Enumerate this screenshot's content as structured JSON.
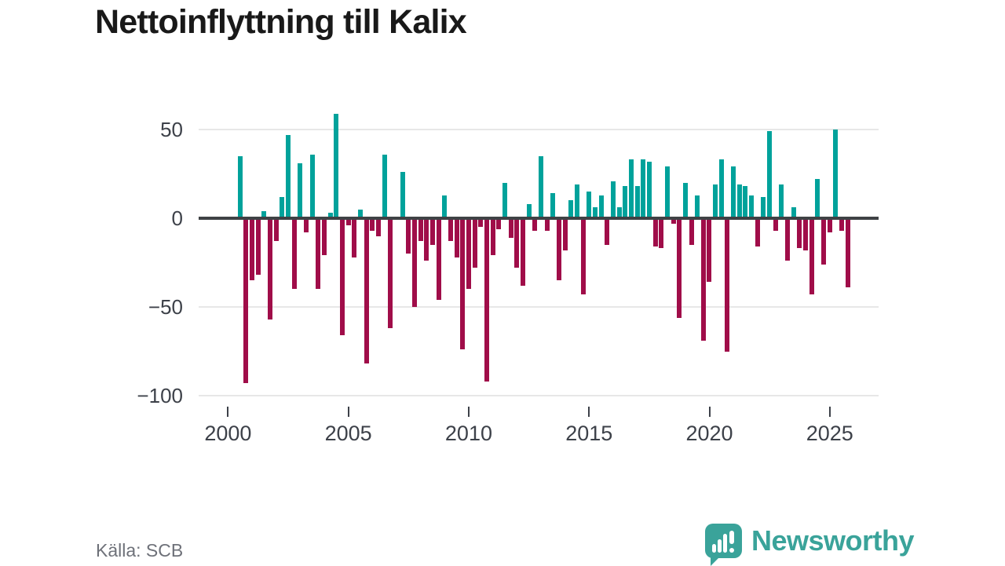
{
  "title": "Nettoinflyttning till Kalix",
  "footer": {
    "source": "Källa: SCB",
    "brand": "Newsworthy"
  },
  "colors": {
    "positive": "#00a29b",
    "negative": "#a00d49",
    "zero_line": "#3f4245",
    "gridline": "#e7e7e7",
    "axis_text": "#3d4149",
    "title_text": "#191919",
    "source_text": "#6e7179",
    "brand_teal": "#3aa39a"
  },
  "chart_data": {
    "type": "bar",
    "title": "Nettoinflyttning till Kalix",
    "xlabel": "",
    "ylabel": "",
    "frequency": "quarterly",
    "grid": "horizontal",
    "legend": "none",
    "ylim": [
      -100,
      60
    ],
    "y_ticks": [
      {
        "label": "50",
        "value": 50
      },
      {
        "label": "0",
        "value": 0
      },
      {
        "label": "−50",
        "value": -50
      },
      {
        "label": "−100",
        "value": -100
      }
    ],
    "x_ticks": [
      {
        "label": "2000",
        "year": 2000
      },
      {
        "label": "2005",
        "year": 2005
      },
      {
        "label": "2010",
        "year": 2010
      },
      {
        "label": "2015",
        "year": 2015
      },
      {
        "label": "2020",
        "year": 2020
      },
      {
        "label": "2025",
        "year": 2025
      }
    ],
    "x": [
      "2000 Q3",
      "2000 Q4",
      "2001 Q1",
      "2001 Q2",
      "2001 Q3",
      "2001 Q4",
      "2002 Q1",
      "2002 Q2",
      "2002 Q3",
      "2002 Q4",
      "2003 Q1",
      "2003 Q2",
      "2003 Q3",
      "2003 Q4",
      "2004 Q1",
      "2004 Q2",
      "2004 Q3",
      "2004 Q4",
      "2005 Q1",
      "2005 Q2",
      "2005 Q3",
      "2005 Q4",
      "2006 Q1",
      "2006 Q2",
      "2006 Q3",
      "2006 Q4",
      "2007 Q1",
      "2007 Q2",
      "2007 Q3",
      "2007 Q4",
      "2008 Q1",
      "2008 Q2",
      "2008 Q3",
      "2008 Q4",
      "2009 Q1",
      "2009 Q2",
      "2009 Q3",
      "2009 Q4",
      "2010 Q1",
      "2010 Q2",
      "2010 Q3",
      "2010 Q4",
      "2011 Q1",
      "2011 Q2",
      "2011 Q3",
      "2011 Q4",
      "2012 Q1",
      "2012 Q2",
      "2012 Q3",
      "2012 Q4",
      "2013 Q1",
      "2013 Q2",
      "2013 Q3",
      "2013 Q4",
      "2014 Q1",
      "2014 Q2",
      "2014 Q3",
      "2014 Q4",
      "2015 Q1",
      "2015 Q2",
      "2015 Q3",
      "2015 Q4",
      "2016 Q1",
      "2016 Q2",
      "2016 Q3",
      "2016 Q4",
      "2017 Q1",
      "2017 Q2",
      "2017 Q3",
      "2017 Q4",
      "2018 Q1",
      "2018 Q2",
      "2018 Q3",
      "2018 Q4",
      "2019 Q1",
      "2019 Q2",
      "2019 Q3",
      "2019 Q4",
      "2020 Q1",
      "2020 Q2",
      "2020 Q3",
      "2020 Q4",
      "2021 Q1",
      "2021 Q2",
      "2021 Q3",
      "2021 Q4",
      "2022 Q1",
      "2022 Q2",
      "2022 Q3",
      "2022 Q4",
      "2023 Q1",
      "2023 Q2",
      "2023 Q3",
      "2023 Q4",
      "2024 Q1",
      "2024 Q2",
      "2024 Q3",
      "2024 Q4",
      "2025 Q1",
      "2025 Q2",
      "2025 Q3",
      "2025 Q4"
    ],
    "values": [
      35,
      -93,
      -35,
      -32,
      4,
      -57,
      -13,
      12,
      47,
      -40,
      31,
      -8,
      36,
      -40,
      -21,
      3,
      59,
      -66,
      -4,
      -22,
      5,
      -82,
      -7,
      -10,
      36,
      -62,
      0,
      26,
      -20,
      -50,
      -13,
      -24,
      -15,
      -46,
      13,
      -13,
      -22,
      -74,
      -40,
      -28,
      -5,
      -92,
      -21,
      -6,
      20,
      -11,
      -28,
      -38,
      8,
      -7,
      35,
      -7,
      14,
      -35,
      -18,
      10,
      19,
      -43,
      15,
      6,
      13,
      -15,
      21,
      6,
      18,
      33,
      18,
      33,
      32,
      -16,
      -17,
      29,
      -3,
      -56,
      20,
      -15,
      13,
      -69,
      -36,
      19,
      33,
      -75,
      29,
      19,
      18,
      13,
      -16,
      12,
      49,
      -7,
      19,
      -24,
      6,
      -17,
      -18,
      -43,
      22,
      -26,
      -8,
      50,
      -7,
      -39
    ]
  }
}
